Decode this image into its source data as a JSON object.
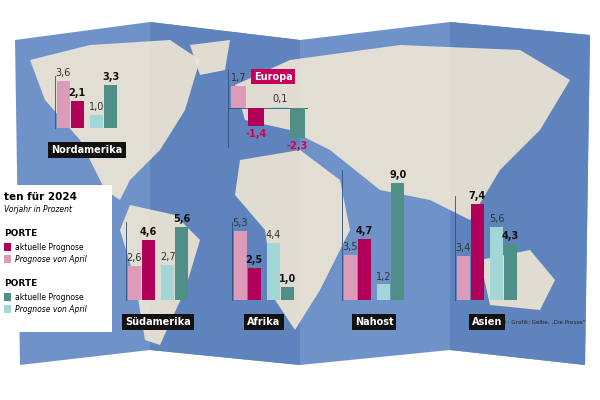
{
  "title": "ten für 2024",
  "subtitle": "Vorjahr in Prozent",
  "source": "Quelle: WTO · Grafik: Gelbe, „Die Presse“",
  "legend_groups": [
    {
      "label": "PORTE",
      "entries": [
        {
          "name": "aktuelle Prognose",
          "color": "#b0005a"
        },
        {
          "name": "Prognose von April",
          "color": "#dc9bb8"
        }
      ]
    },
    {
      "label": "PORTE",
      "entries": [
        {
          "name": "aktuelle Prognose",
          "color": "#4f8f87"
        },
        {
          "name": "Prognose von April",
          "color": "#a3d6d6"
        }
      ]
    }
  ],
  "chart_data": [
    {
      "type": "bar",
      "title": "Nordamerika",
      "categories": [
        null
      ],
      "ylim": [
        0,
        4
      ],
      "tick_labels": false,
      "data_labels": true,
      "series": [
        {
          "color": "#dc9bb8",
          "values": [
            3.6
          ],
          "value_labels": [
            "3,6"
          ]
        },
        {
          "color": "#b0005a",
          "values": [
            2.1
          ],
          "value_labels": [
            "2,1"
          ]
        },
        {
          "color": "#a3d6d6",
          "values": [
            1.0
          ],
          "value_labels": [
            "1,0"
          ]
        },
        {
          "color": "#4f8f87",
          "values": [
            3.3
          ],
          "value_labels": [
            "3,3"
          ]
        }
      ]
    },
    {
      "type": "bar",
      "title": "Europa",
      "categories": [
        null
      ],
      "ylim": [
        -3,
        3
      ],
      "tick_labels": false,
      "data_labels": true,
      "series": [
        {
          "color": "#dc9bb8",
          "values": [
            1.7
          ],
          "value_labels": [
            "1,7"
          ]
        },
        {
          "color": "#b0005a",
          "values": [
            -1.4
          ],
          "value_labels": [
            "-1,4"
          ]
        },
        {
          "color": "#a3d6d6",
          "values": [
            0.1
          ],
          "value_labels": [
            "0,1"
          ]
        },
        {
          "color": "#4f8f87",
          "values": [
            -2.3
          ],
          "value_labels": [
            "-2,3"
          ]
        }
      ]
    },
    {
      "type": "bar",
      "title": "Südamerika",
      "categories": [
        null
      ],
      "ylim": [
        0,
        6
      ],
      "tick_labels": false,
      "data_labels": true,
      "series": [
        {
          "color": "#dc9bb8",
          "values": [
            2.6
          ],
          "value_labels": [
            "2,6"
          ]
        },
        {
          "color": "#b0005a",
          "values": [
            4.6
          ],
          "value_labels": [
            "4,6"
          ]
        },
        {
          "color": "#a3d6d6",
          "values": [
            2.7
          ],
          "value_labels": [
            "2,7"
          ]
        },
        {
          "color": "#4f8f87",
          "values": [
            5.6
          ],
          "value_labels": [
            "5,6"
          ]
        }
      ]
    },
    {
      "type": "bar",
      "title": "Afrika",
      "categories": [
        null
      ],
      "ylim": [
        0,
        6
      ],
      "tick_labels": false,
      "data_labels": true,
      "series": [
        {
          "color": "#dc9bb8",
          "values": [
            5.3
          ],
          "value_labels": [
            "5,3"
          ]
        },
        {
          "color": "#b0005a",
          "values": [
            2.5
          ],
          "value_labels": [
            "2,5"
          ]
        },
        {
          "color": "#a3d6d6",
          "values": [
            4.4
          ],
          "value_labels": [
            "4,4"
          ]
        },
        {
          "color": "#4f8f87",
          "values": [
            1.0
          ],
          "value_labels": [
            "1,0"
          ]
        }
      ]
    },
    {
      "type": "bar",
      "title": "Nahost",
      "categories": [
        null
      ],
      "ylim": [
        0,
        10
      ],
      "tick_labels": false,
      "data_labels": true,
      "series": [
        {
          "color": "#dc9bb8",
          "values": [
            3.5
          ],
          "value_labels": [
            "3,5"
          ]
        },
        {
          "color": "#b0005a",
          "values": [
            4.7
          ],
          "value_labels": [
            "4,7"
          ]
        },
        {
          "color": "#a3d6d6",
          "values": [
            1.2
          ],
          "value_labels": [
            "1,2"
          ]
        },
        {
          "color": "#4f8f87",
          "values": [
            9.0
          ],
          "value_labels": [
            "9,0"
          ]
        }
      ]
    },
    {
      "type": "bar",
      "title": "Asien",
      "categories": [
        null
      ],
      "ylim": [
        0,
        8
      ],
      "tick_labels": false,
      "data_labels": true,
      "series": [
        {
          "color": "#dc9bb8",
          "values": [
            3.4
          ],
          "value_labels": [
            "3,4"
          ]
        },
        {
          "color": "#b0005a",
          "values": [
            7.4
          ],
          "value_labels": [
            "7,4"
          ]
        },
        {
          "color": "#a3d6d6",
          "values": [
            5.6
          ],
          "value_labels": [
            "5,6"
          ]
        },
        {
          "color": "#4f8f87",
          "values": [
            4.3
          ],
          "value_labels": [
            "4,3"
          ]
        }
      ]
    }
  ]
}
